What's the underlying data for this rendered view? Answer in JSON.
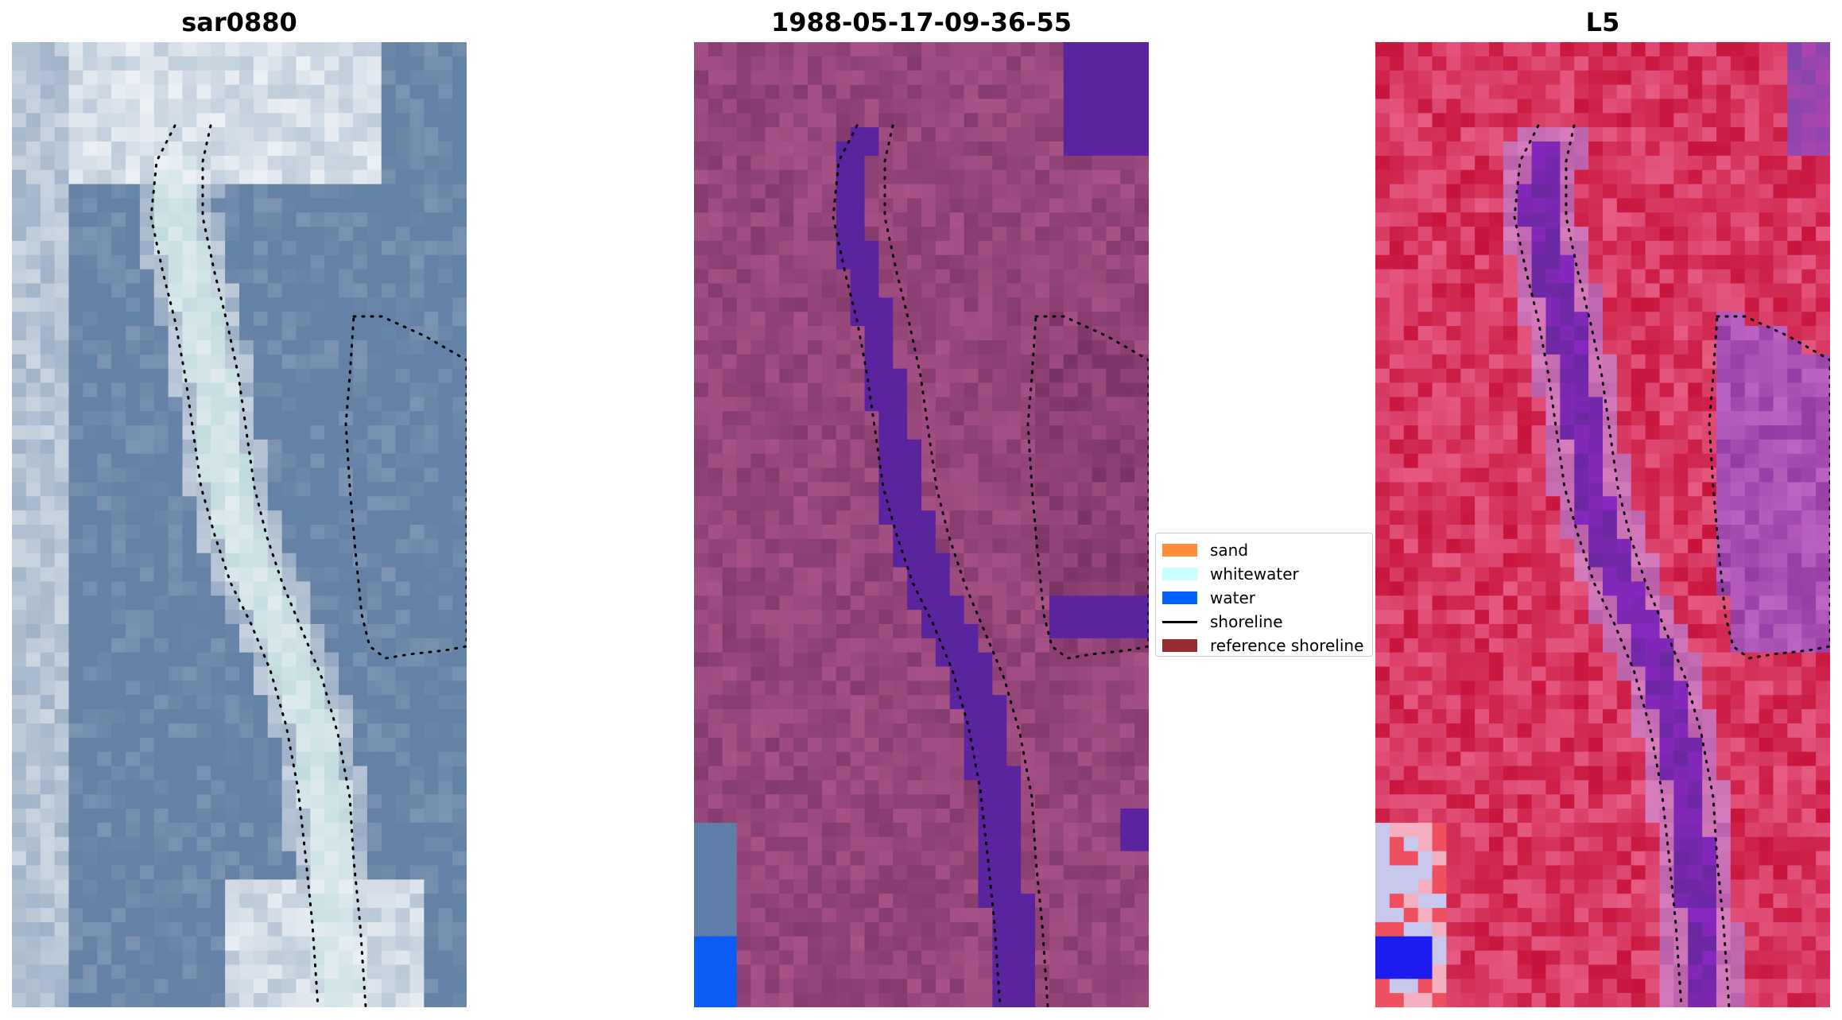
{
  "panels": [
    {
      "title": "sar0880",
      "image_kind": "rgb"
    },
    {
      "title": "1988-05-17-09-36-55",
      "image_kind": "classified"
    },
    {
      "title": "L5",
      "image_kind": "index"
    }
  ],
  "legend": {
    "items": [
      {
        "label": "sand",
        "color": "#ff8c3a",
        "kind": "patch"
      },
      {
        "label": "whitewater",
        "color": "#ccffff",
        "kind": "patch"
      },
      {
        "label": "water",
        "color": "#0061ff",
        "kind": "patch"
      },
      {
        "label": "shoreline",
        "color": "#000000",
        "kind": "line"
      },
      {
        "label": "reference shoreline",
        "color": "#982d31",
        "kind": "patch"
      }
    ]
  }
}
